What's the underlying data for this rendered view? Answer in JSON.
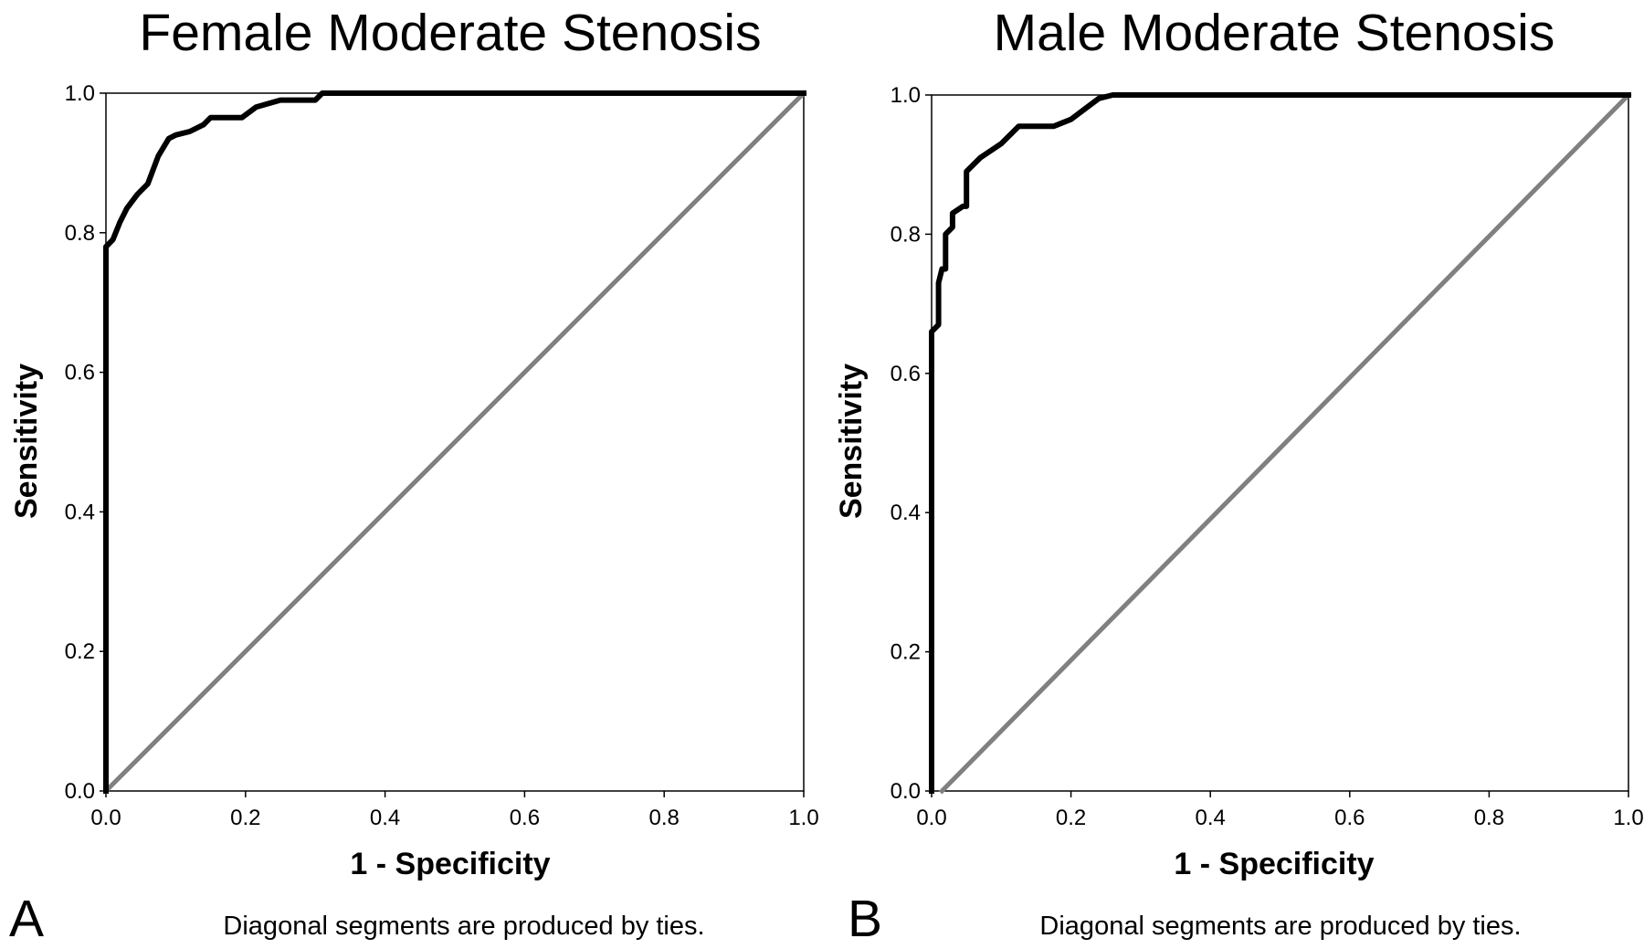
{
  "chart_data": [
    {
      "type": "line",
      "title": "Female Moderate Stenosis",
      "xlabel": "1 - Specificity",
      "ylabel": "Sensitivity",
      "xlim": [
        0,
        1
      ],
      "ylim": [
        0,
        1
      ],
      "x_ticks": [
        "0.0",
        "0.2",
        "0.4",
        "0.6",
        "0.8",
        "1.0"
      ],
      "y_ticks": [
        "0.0",
        "0.2",
        "0.4",
        "0.6",
        "0.8",
        "1.0"
      ],
      "panel_label": "A",
      "footnote": "Diagonal segments are produced by ties.",
      "grid": false,
      "series": [
        {
          "color": "#000000",
          "x": [
            0.0,
            0.0,
            0.01,
            0.02,
            0.03,
            0.045,
            0.06,
            0.075,
            0.09,
            0.1,
            0.12,
            0.14,
            0.15,
            0.195,
            0.215,
            0.25,
            0.3,
            0.31,
            0.5,
            1.0
          ],
          "y": [
            0.0,
            0.78,
            0.79,
            0.815,
            0.835,
            0.855,
            0.87,
            0.91,
            0.935,
            0.94,
            0.945,
            0.955,
            0.965,
            0.965,
            0.98,
            0.99,
            0.99,
            1.0,
            1.0,
            1.0
          ]
        },
        {
          "color": "#808080",
          "x": [
            0.0,
            1.0
          ],
          "y": [
            0.0,
            1.0
          ]
        }
      ]
    },
    {
      "type": "line",
      "title": "Male Moderate Stenosis",
      "xlabel": "1 - Specificity",
      "ylabel": "Sensitivity",
      "xlim": [
        0,
        1
      ],
      "ylim": [
        0,
        1
      ],
      "x_ticks": [
        "0.0",
        "0.2",
        "0.4",
        "0.6",
        "0.8",
        "1.0"
      ],
      "y_ticks": [
        "0.0",
        "0.2",
        "0.4",
        "0.6",
        "0.8",
        "1.0"
      ],
      "panel_label": "B",
      "footnote": "Diagonal segments are produced by ties.",
      "grid": false,
      "series": [
        {
          "color": "#000000",
          "x": [
            0.0,
            0.0,
            0.01,
            0.01,
            0.015,
            0.02,
            0.02,
            0.03,
            0.03,
            0.045,
            0.05,
            0.05,
            0.07,
            0.1,
            0.125,
            0.175,
            0.2,
            0.22,
            0.24,
            0.26,
            1.0
          ],
          "y": [
            0.0,
            0.66,
            0.67,
            0.73,
            0.75,
            0.75,
            0.8,
            0.81,
            0.83,
            0.84,
            0.84,
            0.89,
            0.91,
            0.93,
            0.955,
            0.955,
            0.965,
            0.98,
            0.995,
            1.0,
            1.0
          ]
        },
        {
          "color": "#808080",
          "x": [
            0.015,
            1.0
          ],
          "y": [
            0.0,
            1.0
          ]
        }
      ]
    }
  ]
}
